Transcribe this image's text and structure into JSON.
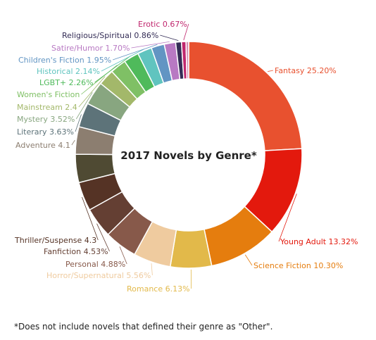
{
  "chart_data": {
    "type": "pie",
    "title": "2017 Novels by Genre*",
    "slices": [
      {
        "label": "Fantasy 25.20%",
        "value": 25.2,
        "color": "#e8512f"
      },
      {
        "label": "Young Adult 13.32%",
        "value": 13.32,
        "color": "#e3190d"
      },
      {
        "label": "Science Fiction 10.30%",
        "value": 10.3,
        "color": "#e57d0e"
      },
      {
        "label": "Romance 6.13%",
        "value": 6.13,
        "color": "#e2b94a"
      },
      {
        "label": "Horror/Supernatural 5.56%",
        "value": 5.56,
        "color": "#efcb9f"
      },
      {
        "label": "Personal 4.88%",
        "value": 4.88,
        "color": "#87594a"
      },
      {
        "label": "Fanfiction 4.53%",
        "value": 4.53,
        "color": "#643f33"
      },
      {
        "label": "Thriller/Suspense 4.3",
        "value": 4.3,
        "color": "#553325"
      },
      {
        "label": "",
        "value": 4.2,
        "color": "#4f4a33"
      },
      {
        "label": "Adventure 4.1",
        "value": 4.1,
        "color": "#8c7e70"
      },
      {
        "label": "Literary 3.63%",
        "value": 3.63,
        "color": "#5d7379"
      },
      {
        "label": "Mystery 3.52%",
        "value": 3.52,
        "color": "#88a680"
      },
      {
        "label": "Mainstream 2.4",
        "value": 2.4,
        "color": "#a3b86a"
      },
      {
        "label": "Women's Fiction",
        "value": 2.4,
        "color": "#7fc065"
      },
      {
        "label": "LGBT+ 2.26%",
        "value": 2.26,
        "color": "#4fba5b"
      },
      {
        "label": "Historical 2.14%",
        "value": 2.14,
        "color": "#60c4bf"
      },
      {
        "label": "Children's Fiction 1.95%",
        "value": 1.95,
        "color": "#6295c3"
      },
      {
        "label": "Satire/Humor 1.70%",
        "value": 1.7,
        "color": "#b879c3"
      },
      {
        "label": "Religious/Spiritual 0.86%",
        "value": 0.86,
        "color": "#342d56"
      },
      {
        "label": "Erotic 0.67%",
        "value": 0.67,
        "color": "#c0276e"
      },
      {
        "label": "",
        "value": 0.4,
        "color": "#d58bb2"
      }
    ]
  },
  "footnote": "*Does not include novels that defined their genre as \"Other\"."
}
